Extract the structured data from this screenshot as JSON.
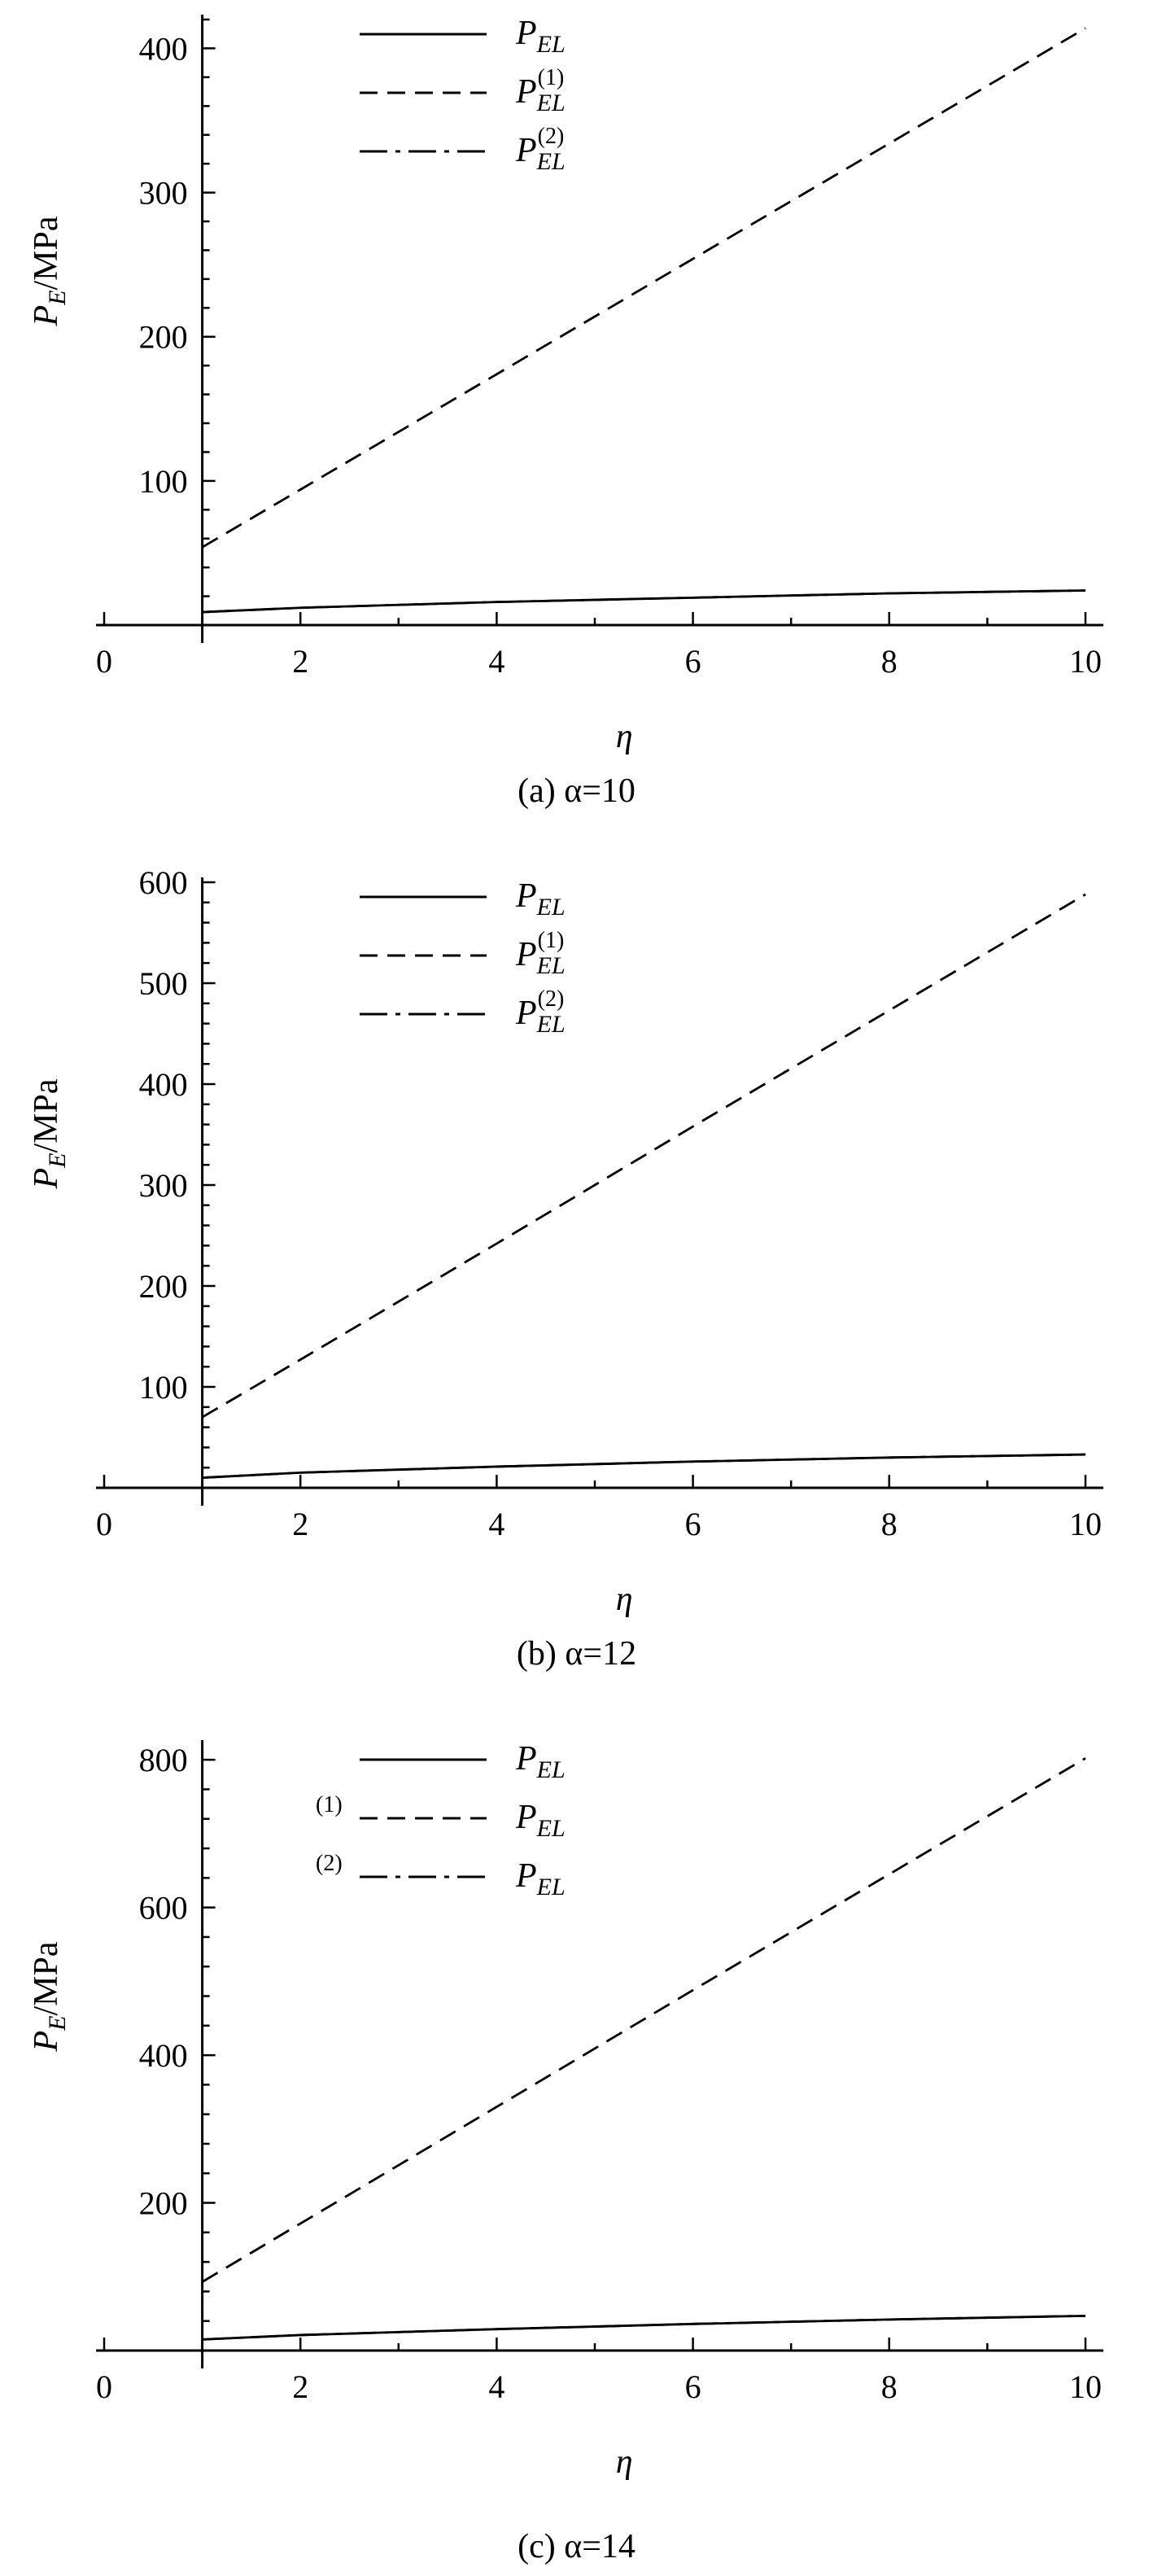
{
  "chart_data": [
    {
      "type": "line",
      "caption": "(a) α=10",
      "xlabel": "η",
      "ylabel": "P_E/MPa",
      "xlim": [
        -0.1,
        10.2
      ],
      "ylim": [
        0,
        420
      ],
      "x_ticks": [
        0,
        2,
        4,
        6,
        8,
        10
      ],
      "y_ticks": [
        100,
        200,
        300,
        400
      ],
      "legend_position": "top-center",
      "series": [
        {
          "name": "P_EL",
          "style": "solid",
          "x": [
            1,
            2,
            4,
            6,
            8,
            10
          ],
          "y": [
            9,
            12,
            16,
            19,
            22,
            24
          ]
        },
        {
          "name": "P_EL^(1)",
          "style": "dashed",
          "x": [
            1,
            2,
            4,
            6,
            8,
            10
          ],
          "y": [
            54,
            94,
            174,
            254,
            334,
            414
          ]
        },
        {
          "name": "P_EL^(2)",
          "style": "dash-dot",
          "x": [
            1,
            2,
            4,
            6,
            8,
            10
          ],
          "y": [
            9,
            12,
            16,
            19,
            22,
            24
          ]
        }
      ]
    },
    {
      "type": "line",
      "caption": "(b) α=12",
      "xlabel": "η",
      "ylabel": "P_E/MPa",
      "xlim": [
        -0.1,
        10.2
      ],
      "ylim": [
        0,
        600
      ],
      "x_ticks": [
        0,
        2,
        4,
        6,
        8,
        10
      ],
      "y_ticks": [
        100,
        200,
        300,
        400,
        500,
        600
      ],
      "legend_position": "top-center",
      "series": [
        {
          "name": "P_EL",
          "style": "solid",
          "x": [
            1,
            2,
            4,
            6,
            8,
            10
          ],
          "y": [
            10,
            15,
            21,
            26,
            30,
            33
          ]
        },
        {
          "name": "P_EL^(1)",
          "style": "dashed",
          "x": [
            1,
            2,
            4,
            6,
            8,
            10
          ],
          "y": [
            70,
            127,
            242,
            358,
            473,
            588
          ]
        },
        {
          "name": "P_EL^(2)",
          "style": "dash-dot",
          "x": [
            1,
            2,
            4,
            6,
            8,
            10
          ],
          "y": [
            10,
            15,
            21,
            26,
            30,
            33
          ]
        }
      ]
    },
    {
      "type": "line",
      "caption": "(c) α=14",
      "xlabel": "η",
      "ylabel": "P_E/MPa",
      "xlim": [
        -0.1,
        10.2
      ],
      "ylim": [
        0,
        820
      ],
      "x_ticks": [
        0,
        2,
        4,
        6,
        8,
        10
      ],
      "y_ticks": [
        200,
        400,
        600,
        800
      ],
      "legend_position": "top-center",
      "legend_style": "detached-superscript",
      "series": [
        {
          "name": "P_EL",
          "style": "solid",
          "x": [
            1,
            2,
            4,
            6,
            8,
            10
          ],
          "y": [
            15,
            21,
            29,
            36,
            42,
            47
          ]
        },
        {
          "name": "P_EL^(1)",
          "style": "dashed",
          "x": [
            1,
            2,
            4,
            6,
            8,
            10
          ],
          "y": [
            93,
            172,
            330,
            488,
            645,
            802
          ]
        },
        {
          "name": "P_EL^(2)",
          "style": "dash-dot",
          "x": [
            1,
            2,
            4,
            6,
            8,
            10
          ],
          "y": [
            15,
            21,
            29,
            36,
            42,
            47
          ]
        }
      ]
    }
  ]
}
